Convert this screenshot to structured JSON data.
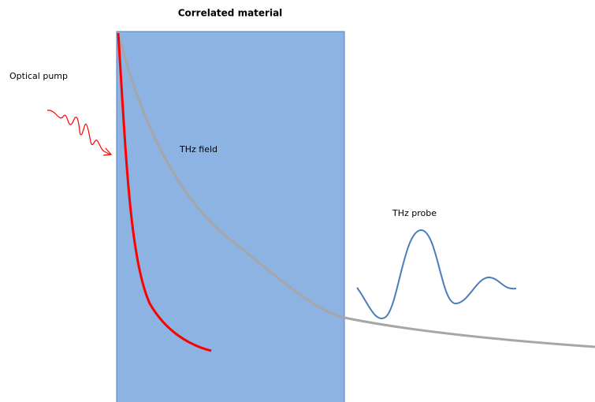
{
  "title": "Correlated material",
  "labels": {
    "pump": "Optical pump",
    "field": "THz field",
    "probe": "THz probe"
  }
}
